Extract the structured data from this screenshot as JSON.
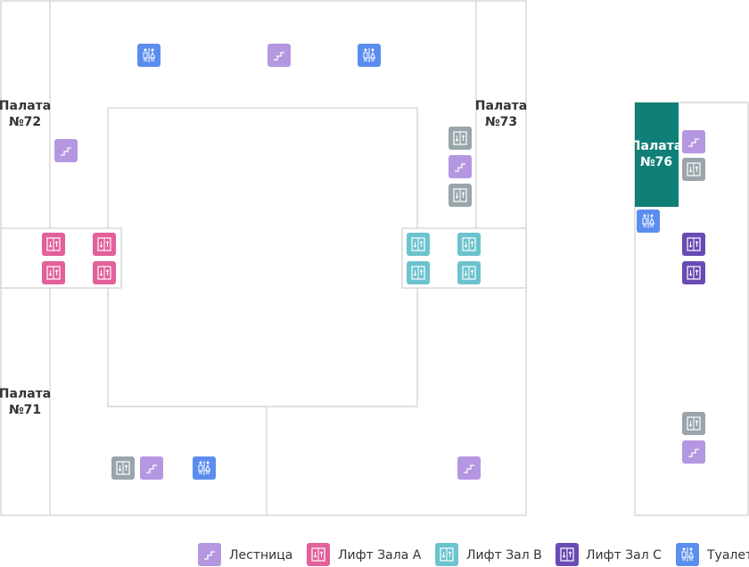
{
  "rooms": [
    {
      "name": "Палата",
      "number": "№72"
    },
    {
      "name": "Палата",
      "number": "№73"
    },
    {
      "name": "Палата",
      "number": "№71"
    },
    {
      "name": "Палата",
      "number": "№76"
    }
  ],
  "legend": [
    "Лестница",
    "Лифт Зала А",
    "Лифт Зал В",
    "Лифт Зал С",
    "Туалет"
  ]
}
